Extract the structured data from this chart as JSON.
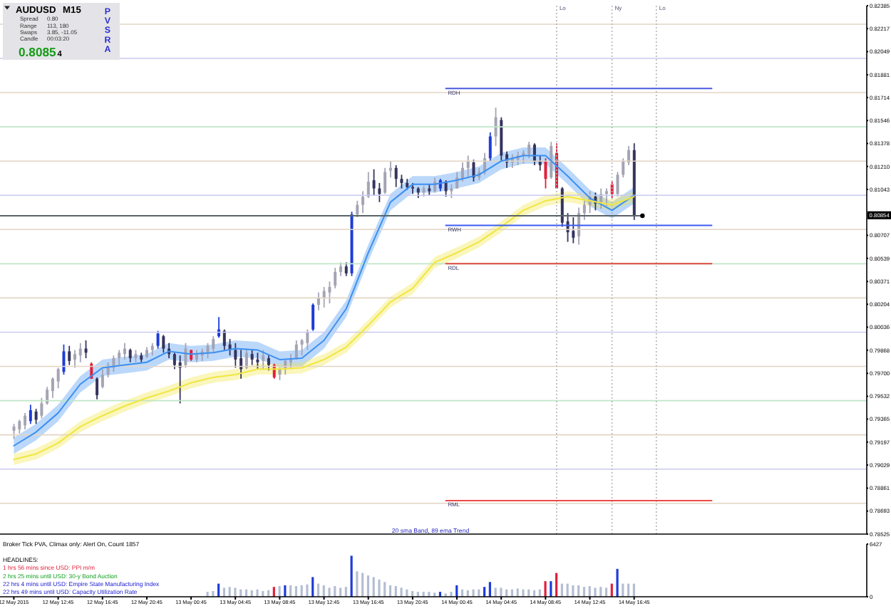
{
  "chart_data": [
    {
      "type": "candlestick",
      "title": "AUDUSD M15",
      "x": [
        "2015-05-12T08:45",
        "2015-05-12T09:15",
        "2015-05-12T09:45",
        "2015-05-12T10:15",
        "2015-05-12T10:45",
        "2015-05-12T11:15",
        "2015-05-12T11:45",
        "2015-05-12T12:15",
        "2015-05-12T12:45",
        "2015-05-12T13:15",
        "2015-05-12T13:45",
        "2015-05-12T14:15",
        "2015-05-12T14:45",
        "2015-05-12T15:15",
        "2015-05-12T15:45",
        "2015-05-12T16:15",
        "2015-05-12T16:45",
        "2015-05-12T17:15",
        "2015-05-12T17:45",
        "2015-05-12T18:15",
        "2015-05-12T18:45",
        "2015-05-12T19:15",
        "2015-05-12T19:45",
        "2015-05-12T20:15",
        "2015-05-12T20:45",
        "2015-05-12T21:15",
        "2015-05-12T21:45",
        "2015-05-12T22:15",
        "2015-05-12T22:45",
        "2015-05-12T23:15",
        "2015-05-12T23:45",
        "2015-05-13T00:15",
        "2015-05-13T00:45",
        "2015-05-13T01:15",
        "2015-05-13T01:45",
        "2015-05-13T02:15",
        "2015-05-13T02:45",
        "2015-05-13T03:15",
        "2015-05-13T03:45",
        "2015-05-13T04:15",
        "2015-05-13T04:45",
        "2015-05-13T05:15",
        "2015-05-13T05:45",
        "2015-05-13T06:15",
        "2015-05-13T06:45",
        "2015-05-13T07:15",
        "2015-05-13T07:45",
        "2015-05-13T08:15",
        "2015-05-13T08:45",
        "2015-05-13T09:15",
        "2015-05-13T09:45",
        "2015-05-13T10:15",
        "2015-05-13T10:45",
        "2015-05-13T11:15",
        "2015-05-13T11:45",
        "2015-05-13T12:15",
        "2015-05-13T12:45",
        "2015-05-13T13:15",
        "2015-05-13T13:45",
        "2015-05-13T14:15",
        "2015-05-13T14:45",
        "2015-05-13T15:15",
        "2015-05-13T15:45",
        "2015-05-13T16:15",
        "2015-05-13T16:45",
        "2015-05-13T17:15",
        "2015-05-13T17:45",
        "2015-05-13T18:15",
        "2015-05-13T18:45",
        "2015-05-13T19:15",
        "2015-05-13T19:45",
        "2015-05-13T20:15",
        "2015-05-13T20:45",
        "2015-05-13T21:15",
        "2015-05-13T21:45",
        "2015-05-13T22:15",
        "2015-05-13T22:45",
        "2015-05-13T23:15",
        "2015-05-13T23:45",
        "2015-05-14T00:15",
        "2015-05-14T00:45",
        "2015-05-14T01:15",
        "2015-05-14T01:45",
        "2015-05-14T02:15",
        "2015-05-14T02:45",
        "2015-05-14T03:15",
        "2015-05-14T03:45",
        "2015-05-14T04:15",
        "2015-05-14T04:45",
        "2015-05-14T05:15",
        "2015-05-14T05:45",
        "2015-05-14T06:15",
        "2015-05-14T06:45",
        "2015-05-14T07:15",
        "2015-05-14T07:45",
        "2015-05-14T08:15",
        "2015-05-14T08:45",
        "2015-05-14T09:15",
        "2015-05-14T09:45",
        "2015-05-14T10:15",
        "2015-05-14T10:45",
        "2015-05-14T11:15",
        "2015-05-14T11:45",
        "2015-05-14T12:15",
        "2015-05-14T12:45",
        "2015-05-14T13:15",
        "2015-05-14T13:45",
        "2015-05-14T14:15",
        "2015-05-14T14:45",
        "2015-05-14T15:15",
        "2015-05-14T15:45",
        "2015-05-14T16:15",
        "2015-05-14T16:45"
      ],
      "ohlc": [
        [
          0.7928,
          0.7933,
          0.7922,
          0.7931
        ],
        [
          0.7929,
          0.7936,
          0.7926,
          0.7935
        ],
        [
          0.7932,
          0.7941,
          0.7929,
          0.7939
        ],
        [
          0.7935,
          0.7947,
          0.7933,
          0.7943
        ],
        [
          0.7942,
          0.7944,
          0.7933,
          0.7936
        ],
        [
          0.7939,
          0.7952,
          0.7937,
          0.7948
        ],
        [
          0.7948,
          0.796,
          0.7947,
          0.7958
        ],
        [
          0.7957,
          0.7967,
          0.7952,
          0.7966
        ],
        [
          0.7964,
          0.7974,
          0.7959,
          0.7973
        ],
        [
          0.7971,
          0.7991,
          0.7969,
          0.7986
        ],
        [
          0.7986,
          0.799,
          0.7976,
          0.7979
        ],
        [
          0.798,
          0.7987,
          0.7974,
          0.7984
        ],
        [
          0.7983,
          0.7992,
          0.7978,
          0.7988
        ],
        [
          0.7988,
          0.7994,
          0.7981,
          0.7985
        ],
        [
          0.7977,
          0.7978,
          0.7966,
          0.7966
        ],
        [
          0.7966,
          0.7967,
          0.7951,
          0.7954
        ],
        [
          0.796,
          0.7973,
          0.7959,
          0.7969
        ],
        [
          0.7969,
          0.7978,
          0.7967,
          0.7976
        ],
        [
          0.7974,
          0.7983,
          0.7971,
          0.7981
        ],
        [
          0.7981,
          0.7987,
          0.7976,
          0.7985
        ],
        [
          0.7984,
          0.7992,
          0.798,
          0.7988
        ],
        [
          0.7987,
          0.7988,
          0.7978,
          0.7981
        ],
        [
          0.7981,
          0.7987,
          0.7978,
          0.7984
        ],
        [
          0.7983,
          0.7985,
          0.7978,
          0.798
        ],
        [
          0.7982,
          0.7989,
          0.7981,
          0.7987
        ],
        [
          0.7987,
          0.7992,
          0.7983,
          0.799
        ],
        [
          0.799,
          0.8001,
          0.7988,
          0.7999
        ],
        [
          0.7997,
          0.7998,
          0.7985,
          0.7988
        ],
        [
          0.7988,
          0.7992,
          0.7981,
          0.7984
        ],
        [
          0.7984,
          0.7985,
          0.7973,
          0.7976
        ],
        [
          0.7978,
          0.7983,
          0.7948,
          0.7974
        ],
        [
          0.7976,
          0.7992,
          0.7974,
          0.7988
        ],
        [
          0.7987,
          0.7987,
          0.7979,
          0.798
        ],
        [
          0.798,
          0.7987,
          0.7978,
          0.7984
        ],
        [
          0.7983,
          0.7988,
          0.7979,
          0.7986
        ],
        [
          0.7985,
          0.7992,
          0.7981,
          0.799
        ],
        [
          0.7988,
          0.7997,
          0.7985,
          0.7995
        ],
        [
          0.7997,
          0.8011,
          0.7996,
          0.8002
        ],
        [
          0.8001,
          0.8002,
          0.7987,
          0.799
        ],
        [
          0.7991,
          0.7995,
          0.7983,
          0.7987
        ],
        [
          0.7987,
          0.7992,
          0.7974,
          0.798
        ],
        [
          0.7981,
          0.7987,
          0.7966,
          0.7973
        ],
        [
          0.7974,
          0.7988,
          0.7973,
          0.7985
        ],
        [
          0.7984,
          0.7987,
          0.7976,
          0.798
        ],
        [
          0.798,
          0.7985,
          0.7973,
          0.7978
        ],
        [
          0.7979,
          0.7987,
          0.7973,
          0.7983
        ],
        [
          0.7981,
          0.7983,
          0.7972,
          0.7976
        ],
        [
          0.7976,
          0.7977,
          0.7966,
          0.7967
        ],
        [
          0.7969,
          0.7974,
          0.7965,
          0.7973
        ],
        [
          0.7973,
          0.798,
          0.7969,
          0.7979
        ],
        [
          0.7978,
          0.7984,
          0.7973,
          0.7981
        ],
        [
          0.7981,
          0.7994,
          0.798,
          0.7991
        ],
        [
          0.7991,
          0.7995,
          0.7983,
          0.7994
        ],
        [
          0.7992,
          0.8002,
          0.7987,
          0.8
        ],
        [
          0.8002,
          0.8021,
          0.8001,
          0.802
        ],
        [
          0.802,
          0.8029,
          0.8016,
          0.8025
        ],
        [
          0.8025,
          0.8033,
          0.8018,
          0.803
        ],
        [
          0.8029,
          0.8037,
          0.8021,
          0.8033
        ],
        [
          0.8034,
          0.8047,
          0.8032,
          0.8044
        ],
        [
          0.8044,
          0.8051,
          0.8041,
          0.8048
        ],
        [
          0.8048,
          0.8051,
          0.8041,
          0.8043
        ],
        [
          0.8043,
          0.8088,
          0.8041,
          0.8086
        ],
        [
          0.8086,
          0.8096,
          0.8084,
          0.8093
        ],
        [
          0.8093,
          0.8103,
          0.8087,
          0.8099
        ],
        [
          0.8099,
          0.8117,
          0.8098,
          0.811
        ],
        [
          0.8111,
          0.8119,
          0.81,
          0.8105
        ],
        [
          0.8105,
          0.8109,
          0.8095,
          0.8101
        ],
        [
          0.8102,
          0.812,
          0.8101,
          0.8117
        ],
        [
          0.8118,
          0.8125,
          0.8113,
          0.812
        ],
        [
          0.812,
          0.8122,
          0.8106,
          0.8112
        ],
        [
          0.8112,
          0.8115,
          0.8105,
          0.8109
        ],
        [
          0.8109,
          0.8112,
          0.8104,
          0.8106
        ],
        [
          0.8106,
          0.8109,
          0.8101,
          0.8105
        ],
        [
          0.8105,
          0.8106,
          0.8098,
          0.8102
        ],
        [
          0.8102,
          0.8107,
          0.8099,
          0.8105
        ],
        [
          0.8105,
          0.8108,
          0.81,
          0.8103
        ],
        [
          0.8103,
          0.8113,
          0.8102,
          0.811
        ],
        [
          0.8105,
          0.8112,
          0.8103,
          0.8111
        ],
        [
          0.811,
          0.8111,
          0.8099,
          0.8103
        ],
        [
          0.8103,
          0.8108,
          0.8098,
          0.8105
        ],
        [
          0.8105,
          0.8117,
          0.8105,
          0.8113
        ],
        [
          0.8112,
          0.8124,
          0.811,
          0.812
        ],
        [
          0.812,
          0.8129,
          0.8113,
          0.8125
        ],
        [
          0.8124,
          0.8126,
          0.811,
          0.8113
        ],
        [
          0.8113,
          0.812,
          0.8111,
          0.8117
        ],
        [
          0.8117,
          0.8131,
          0.8115,
          0.8127
        ],
        [
          0.8127,
          0.8146,
          0.8125,
          0.8143
        ],
        [
          0.8143,
          0.8164,
          0.8136,
          0.8157
        ],
        [
          0.8155,
          0.8157,
          0.8125,
          0.8129
        ],
        [
          0.813,
          0.8132,
          0.812,
          0.8124
        ],
        [
          0.8124,
          0.813,
          0.812,
          0.8127
        ],
        [
          0.8126,
          0.8132,
          0.8122,
          0.8129
        ],
        [
          0.8129,
          0.8133,
          0.8123,
          0.8131
        ],
        [
          0.813,
          0.8139,
          0.8127,
          0.8137
        ],
        [
          0.8137,
          0.8138,
          0.8122,
          0.8125
        ],
        [
          0.8125,
          0.8129,
          0.8118,
          0.8122
        ],
        [
          0.8125,
          0.8127,
          0.8105,
          0.8112
        ],
        [
          0.8113,
          0.8139,
          0.8112,
          0.8136
        ],
        [
          0.8131,
          0.8138,
          0.8105,
          0.8105
        ],
        [
          0.8105,
          0.8106,
          0.8077,
          0.808
        ],
        [
          0.8081,
          0.8087,
          0.8066,
          0.8073
        ],
        [
          0.8074,
          0.8084,
          0.8065,
          0.8069
        ],
        [
          0.807,
          0.8091,
          0.8064,
          0.8087
        ],
        [
          0.8087,
          0.8096,
          0.8082,
          0.8093
        ],
        [
          0.8093,
          0.8103,
          0.8087,
          0.8099
        ],
        [
          0.8099,
          0.8102,
          0.8089,
          0.8094
        ],
        [
          0.8095,
          0.8105,
          0.809,
          0.8101
        ],
        [
          0.8101,
          0.8105,
          0.8092,
          0.8103
        ],
        [
          0.8108,
          0.811,
          0.8098,
          0.8101
        ],
        [
          0.8101,
          0.8117,
          0.8099,
          0.8115
        ],
        [
          0.8115,
          0.8127,
          0.8113,
          0.8125
        ],
        [
          0.8124,
          0.8136,
          0.8122,
          0.8133
        ],
        [
          0.8133,
          0.8138,
          0.8082,
          0.8085
        ]
      ],
      "colors": [
        "#a4a4b4",
        "#a4a4b4",
        "#a4a4b4",
        "#1e3cd8",
        "#34345e",
        "#a4a4b4",
        "#a4a4b4",
        "#a4a4b4",
        "#a4a4b4",
        "#1e3cd8",
        "#34345e",
        "#a4a4b4",
        "#a4a4b4",
        "#34345e",
        "#e0203c",
        "#34345e",
        "#a4a4b4",
        "#a4a4b4",
        "#a4a4b4",
        "#a4a4b4",
        "#a4a4b4",
        "#34345e",
        "#a4a4b4",
        "#34345e",
        "#a4a4b4",
        "#a4a4b4",
        "#1e3cd8",
        "#34345e",
        "#34345e",
        "#34345e",
        "#34345e",
        "#a4a4b4",
        "#e0203c",
        "#a4a4b4",
        "#a4a4b4",
        "#a4a4b4",
        "#a4a4b4",
        "#1e3cd8",
        "#34345e",
        "#34345e",
        "#34345e",
        "#34345e",
        "#a4a4b4",
        "#34345e",
        "#34345e",
        "#a4a4b4",
        "#34345e",
        "#e0203c",
        "#a4a4b4",
        "#a4a4b4",
        "#a4a4b4",
        "#a4a4b4",
        "#a4a4b4",
        "#a4a4b4",
        "#1e3cd8",
        "#a4a4b4",
        "#a4a4b4",
        "#a4a4b4",
        "#a4a4b4",
        "#a4a4b4",
        "#34345e",
        "#1e3cd8",
        "#a4a4b4",
        "#a4a4b4",
        "#a4a4b4",
        "#34345e",
        "#34345e",
        "#a4a4b4",
        "#a4a4b4",
        "#34345e",
        "#34345e",
        "#34345e",
        "#34345e",
        "#34345e",
        "#a4a4b4",
        "#34345e",
        "#a4a4b4",
        "#1e3cd8",
        "#34345e",
        "#a4a4b4",
        "#a4a4b4",
        "#a4a4b4",
        "#a4a4b4",
        "#34345e",
        "#a4a4b4",
        "#a4a4b4",
        "#1e3cd8",
        "#a4a4b4",
        "#34345e",
        "#34345e",
        "#a4a4b4",
        "#a4a4b4",
        "#a4a4b4",
        "#a4a4b4",
        "#34345e",
        "#34345e",
        "#e0203c",
        "#a4a4b4",
        "#e0203c",
        "#34345e",
        "#34345e",
        "#34345e",
        "#a4a4b4",
        "#a4a4b4",
        "#a4a4b4",
        "#34345e",
        "#a4a4b4",
        "#a4a4b4",
        "#e0203c",
        "#a4a4b4",
        "#a4a4b4",
        "#a4a4b4",
        "#34345e"
      ],
      "series": [
        {
          "type": "line",
          "color": "#3c8ff0",
          "x": [
            "2015-05-12T08:45",
            "2015-05-12T10:45",
            "2015-05-12T12:45",
            "2015-05-12T14:45",
            "2015-05-12T16:45",
            "2015-05-12T18:45",
            "2015-05-12T20:45",
            "2015-05-12T22:45",
            "2015-05-13T00:45",
            "2015-05-13T02:45",
            "2015-05-13T04:45",
            "2015-05-13T06:45",
            "2015-05-13T08:45",
            "2015-05-13T10:45",
            "2015-05-13T12:45",
            "2015-05-13T14:45",
            "2015-05-13T16:45",
            "2015-05-13T18:45",
            "2015-05-13T20:45",
            "2015-05-13T22:45",
            "2015-05-14T00:45",
            "2015-05-14T02:45",
            "2015-05-14T04:45",
            "2015-05-14T06:45",
            "2015-05-14T08:45",
            "2015-05-14T10:45",
            "2015-05-14T12:45",
            "2015-05-14T14:45",
            "2015-05-14T16:45"
          ],
          "values": [
            0.7917,
            0.7927,
            0.7941,
            0.7962,
            0.7974,
            0.7976,
            0.7978,
            0.7986,
            0.7984,
            0.7985,
            0.7988,
            0.7987,
            0.798,
            0.7981,
            0.7994,
            0.8017,
            0.8058,
            0.8095,
            0.8108,
            0.8108,
            0.8111,
            0.8115,
            0.8125,
            0.8129,
            0.8129,
            0.8114,
            0.8098,
            0.8089,
            0.81
          ],
          "lower": [
            0.7911,
            0.7921,
            0.7935,
            0.7956,
            0.7968,
            0.797,
            0.7972,
            0.798,
            0.7978,
            0.7979,
            0.7982,
            0.7981,
            0.7974,
            0.7975,
            0.7988,
            0.8011,
            0.8052,
            0.8089,
            0.8102,
            0.8102,
            0.8105,
            0.8109,
            0.8119,
            0.8123,
            0.8123,
            0.8108,
            0.8092,
            0.8083,
            0.8094
          ],
          "upper": [
            0.7923,
            0.7933,
            0.7947,
            0.7968,
            0.798,
            0.7982,
            0.7984,
            0.7992,
            0.799,
            0.7991,
            0.7994,
            0.7993,
            0.7986,
            0.7987,
            0.8,
            0.8023,
            0.8064,
            0.8101,
            0.8114,
            0.8114,
            0.8117,
            0.8121,
            0.8131,
            0.8135,
            0.8135,
            0.812,
            0.8104,
            0.8095,
            0.8106
          ]
        },
        {
          "type": "line",
          "color": "#f0e640",
          "x": [
            "2015-05-12T08:45",
            "2015-05-12T10:45",
            "2015-05-12T12:45",
            "2015-05-12T14:45",
            "2015-05-12T16:45",
            "2015-05-12T18:45",
            "2015-05-12T20:45",
            "2015-05-12T22:45",
            "2015-05-13T00:45",
            "2015-05-13T02:45",
            "2015-05-13T04:45",
            "2015-05-13T06:45",
            "2015-05-13T08:45",
            "2015-05-13T10:45",
            "2015-05-13T12:45",
            "2015-05-13T14:45",
            "2015-05-13T16:45",
            "2015-05-13T18:45",
            "2015-05-13T20:45",
            "2015-05-13T22:45",
            "2015-05-14T00:45",
            "2015-05-14T02:45",
            "2015-05-14T04:45",
            "2015-05-14T06:45",
            "2015-05-14T08:45",
            "2015-05-14T10:45",
            "2015-05-14T12:45",
            "2015-05-14T14:45",
            "2015-05-14T16:45"
          ],
          "values": [
            0.7907,
            0.7911,
            0.7919,
            0.7931,
            0.7939,
            0.7946,
            0.7952,
            0.7957,
            0.7963,
            0.7967,
            0.7969,
            0.7973,
            0.7973,
            0.7974,
            0.798,
            0.7989,
            0.8005,
            0.8022,
            0.8032,
            0.8051,
            0.8058,
            0.8066,
            0.8077,
            0.8089,
            0.8096,
            0.8099,
            0.8096,
            0.8093,
            0.8099
          ],
          "lower": [
            0.7903,
            0.7907,
            0.7915,
            0.7927,
            0.7935,
            0.7942,
            0.7948,
            0.7953,
            0.7959,
            0.7963,
            0.7965,
            0.7969,
            0.7969,
            0.797,
            0.7976,
            0.7985,
            0.8001,
            0.8018,
            0.8028,
            0.8047,
            0.8054,
            0.8062,
            0.8073,
            0.8085,
            0.8092,
            0.8095,
            0.8092,
            0.8089,
            0.8095
          ],
          "upper": [
            0.7911,
            0.7915,
            0.7923,
            0.7935,
            0.7943,
            0.795,
            0.7956,
            0.7961,
            0.7967,
            0.7971,
            0.7973,
            0.7977,
            0.7977,
            0.7978,
            0.7984,
            0.7993,
            0.8009,
            0.8026,
            0.8036,
            0.8055,
            0.8062,
            0.807,
            0.8081,
            0.8093,
            0.81,
            0.8103,
            0.81,
            0.8097,
            0.8103
          ]
        },
        {
          "type": "line",
          "name": "RDH",
          "color": "#4a5ae0",
          "x": [
            "2015-05-13T23:45",
            "2015-05-14T23:45"
          ],
          "values": [
            0.8178,
            0.8178
          ]
        },
        {
          "type": "line",
          "name": "RWH",
          "color": "#3c5cf0",
          "x": [
            "2015-05-13T23:45",
            "2015-05-14T23:45"
          ],
          "values": [
            0.8078,
            0.8078
          ]
        },
        {
          "type": "line",
          "name": "RDL",
          "color": "#e04a40",
          "x": [
            "2015-05-13T23:45",
            "2015-05-14T23:45"
          ],
          "values": [
            0.805,
            0.805
          ]
        },
        {
          "type": "line",
          "name": "RML",
          "color": "#f04848",
          "x": [
            "2015-05-13T23:45",
            "2015-05-14T23:45"
          ],
          "values": [
            0.7877,
            0.7877
          ]
        },
        {
          "type": "line",
          "color": "#5a6468",
          "x": [
            "2015-05-12T07:30",
            "2015-05-14T17:30"
          ],
          "values": [
            0.8085,
            0.8085
          ]
        },
        {
          "type": "scatter",
          "color": "#000000",
          "x": [
            "2015-05-14T17:30"
          ],
          "values": [
            0.8085
          ]
        }
      ],
      "xlim": [
        "2015-05-12T07:30",
        "2015-05-15T13:45"
      ],
      "ylim": [
        0.78525,
        0.82385
      ],
      "yticks": [
        0.82385,
        0.82217,
        0.82049,
        0.81881,
        0.81714,
        0.81546,
        0.81378,
        {
          "value": 0.8121,
          "label": "0.81210"
        },
        0.81043,
        0.80707,
        0.80539,
        0.80371,
        0.80204,
        0.80036,
        0.79868,
        {
          "value": 0.797,
          "label": "0.79700"
        },
        0.79532,
        0.79365,
        0.79197,
        0.79029,
        0.78861,
        0.78693,
        0.78525
      ],
      "tick_labels": "y",
      "ref_lines": [
        {
          "axis": "y",
          "value": 0.8225,
          "color": "#e2d5c4"
        },
        {
          "axis": "y",
          "value": 0.82,
          "color": "#cacaf2"
        },
        {
          "axis": "y",
          "value": 0.8175,
          "color": "#e2d5c4"
        },
        {
          "axis": "y",
          "value": 0.815,
          "color": "#bfe6c8"
        },
        {
          "axis": "y",
          "value": 0.8125,
          "color": "#e2d5c4"
        },
        {
          "axis": "y",
          "value": 0.81,
          "color": "#cacaf2"
        },
        {
          "axis": "y",
          "value": 0.8075,
          "color": "#e2d5c4"
        },
        {
          "axis": "y",
          "value": 0.805,
          "color": "#bfe6c8"
        },
        {
          "axis": "y",
          "value": 0.8025,
          "color": "#e2d5c4"
        },
        {
          "axis": "y",
          "value": 0.8,
          "color": "#cacaf2"
        },
        {
          "axis": "y",
          "value": 0.7975,
          "color": "#e2d5c4"
        },
        {
          "axis": "y",
          "value": 0.795,
          "color": "#bfe6c8"
        },
        {
          "axis": "y",
          "value": 0.7925,
          "color": "#e2d5c4"
        },
        {
          "axis": "y",
          "value": 0.79,
          "color": "#cacaf2"
        },
        {
          "axis": "y",
          "value": 0.7875,
          "color": "#e2d5c4"
        },
        {
          "axis": "x",
          "value": "2015-05-14T09:45",
          "label": "Lo",
          "color": "#b4b4b4",
          "line_style": "dotted"
        },
        {
          "axis": "x",
          "value": "2015-05-14T14:45",
          "label": "Ny",
          "color": "#b4b4b4",
          "line_style": "dotted"
        },
        {
          "axis": "x",
          "value": "2015-05-14T18:45",
          "label": "Lo",
          "color": "#b4b4b4",
          "line_style": "dotted"
        }
      ],
      "annotations": [
        "Spread 0.80",
        "Range 113, 180",
        "Swaps 3.85, -11.05",
        "Candle 00:03:20",
        "0.80854",
        "PVSRA",
        "20 sma Band, 89 ema Trend",
        {
          "text": "0.80854",
          "y": 0.80854
        }
      ]
    },
    {
      "type": "bar",
      "x": [
        "2015-05-13T02:15",
        "2015-05-13T02:45",
        "2015-05-13T03:15",
        "2015-05-13T03:45",
        "2015-05-13T04:15",
        "2015-05-13T04:45",
        "2015-05-13T05:15",
        "2015-05-13T05:45",
        "2015-05-13T06:15",
        "2015-05-13T06:45",
        "2015-05-13T07:15",
        "2015-05-13T07:45",
        "2015-05-13T08:15",
        "2015-05-13T08:45",
        "2015-05-13T09:15",
        "2015-05-13T09:45",
        "2015-05-13T10:15",
        "2015-05-13T10:45",
        "2015-05-13T11:15",
        "2015-05-13T11:45",
        "2015-05-13T12:15",
        "2015-05-13T12:45",
        "2015-05-13T13:15",
        "2015-05-13T13:45",
        "2015-05-13T14:15",
        "2015-05-13T14:45",
        "2015-05-13T15:15",
        "2015-05-13T15:45",
        "2015-05-13T16:15",
        "2015-05-13T16:45",
        "2015-05-13T17:15",
        "2015-05-13T17:45",
        "2015-05-13T18:15",
        "2015-05-13T18:45",
        "2015-05-13T19:15",
        "2015-05-13T19:45",
        "2015-05-13T20:15",
        "2015-05-13T20:45",
        "2015-05-13T21:15",
        "2015-05-13T21:45",
        "2015-05-13T22:15",
        "2015-05-13T22:45",
        "2015-05-13T23:15",
        "2015-05-13T23:45",
        "2015-05-14T00:15",
        "2015-05-14T00:45",
        "2015-05-14T01:15",
        "2015-05-14T01:45",
        "2015-05-14T02:15",
        "2015-05-14T02:45",
        "2015-05-14T03:15",
        "2015-05-14T03:45",
        "2015-05-14T04:15",
        "2015-05-14T04:45",
        "2015-05-14T05:15",
        "2015-05-14T05:45",
        "2015-05-14T06:15",
        "2015-05-14T06:45",
        "2015-05-14T07:15",
        "2015-05-14T07:45",
        "2015-05-14T08:15",
        "2015-05-14T08:45",
        "2015-05-14T09:15",
        "2015-05-14T09:45",
        "2015-05-14T10:15",
        "2015-05-14T10:45",
        "2015-05-14T11:15",
        "2015-05-14T11:45",
        "2015-05-14T12:15",
        "2015-05-14T12:45",
        "2015-05-14T13:15",
        "2015-05-14T13:45",
        "2015-05-14T14:15",
        "2015-05-14T14:45",
        "2015-05-14T15:15",
        "2015-05-14T15:45",
        "2015-05-14T16:15",
        "2015-05-14T16:45"
      ],
      "values": [
        600,
        700,
        1600,
        1100,
        1200,
        1100,
        900,
        900,
        800,
        900,
        700,
        800,
        1200,
        1300,
        1400,
        1400,
        1300,
        1400,
        1500,
        2400,
        1600,
        1400,
        1100,
        1300,
        1100,
        1200,
        5000,
        3100,
        2900,
        2600,
        2400,
        2100,
        1800,
        1400,
        1300,
        1100,
        900,
        700,
        600,
        600,
        600,
        500,
        600,
        400,
        600,
        1400,
        900,
        800,
        900,
        900,
        1200,
        1800,
        1100,
        1100,
        900,
        900,
        1000,
        900,
        900,
        800,
        900,
        1900,
        1900,
        2900,
        1600,
        1600,
        1400,
        1400,
        1200,
        1300,
        1100,
        1200,
        1100,
        1600,
        3400,
        1600,
        1600,
        1600
      ],
      "colors": [
        "#b4bed2",
        "#b4bed2",
        "#1e3cd8",
        "#b4bed2",
        "#b4bed2",
        "#b4bed2",
        "#b4bed2",
        "#b4bed2",
        "#b4bed2",
        "#b4bed2",
        "#b4bed2",
        "#b4bed2",
        "#e0203c",
        "#b4bed2",
        "#1e3cd8",
        "#b4bed2",
        "#b4bed2",
        "#b4bed2",
        "#b4bed2",
        "#1e3cd8",
        "#b4bed2",
        "#b4bed2",
        "#b4bed2",
        "#b4bed2",
        "#b4bed2",
        "#b4bed2",
        "#1e3cd8",
        "#b4bed2",
        "#b4bed2",
        "#b4bed2",
        "#b4bed2",
        "#b4bed2",
        "#b4bed2",
        "#b4bed2",
        "#b4bed2",
        "#b4bed2",
        "#b4bed2",
        "#b4bed2",
        "#b4bed2",
        "#b4bed2",
        "#b4bed2",
        "#b4bed2",
        "#1e3cd8",
        "#b4bed2",
        "#b4bed2",
        "#1e3cd8",
        "#b4bed2",
        "#b4bed2",
        "#b4bed2",
        "#b4bed2",
        "#1e3cd8",
        "#1e3cd8",
        "#b4bed2",
        "#b4bed2",
        "#b4bed2",
        "#b4bed2",
        "#b4bed2",
        "#b4bed2",
        "#b4bed2",
        "#b4bed2",
        "#b4bed2",
        "#e0203c",
        "#1e3cd8",
        "#e0203c",
        "#b4bed2",
        "#b4bed2",
        "#b4bed2",
        "#b4bed2",
        "#b4bed2",
        "#b4bed2",
        "#b4bed2",
        "#b4bed2",
        "#b4bed2",
        "#e0203c",
        "#1e3cd8",
        "#b4bed2",
        "#b4bed2",
        "#b4bed2"
      ],
      "xlim": [
        "2015-05-12T07:30",
        "2015-05-15T13:45"
      ],
      "xticks": [
        {
          "value": "2015-05-12T08:45",
          "label": "12 May 2015"
        },
        {
          "value": "2015-05-12T12:45",
          "label": "12 May 12:45"
        },
        {
          "value": "2015-05-12T16:45",
          "label": "12 May 16:45"
        },
        {
          "value": "2015-05-12T20:45",
          "label": "12 May 20:45"
        },
        {
          "value": "2015-05-13T00:45",
          "label": "13 May 00:45"
        },
        {
          "value": "2015-05-13T04:45",
          "label": "13 May 04:45"
        },
        {
          "value": "2015-05-13T08:45",
          "label": "13 May 08:45"
        },
        {
          "value": "2015-05-13T12:45",
          "label": "13 May 12:45"
        },
        {
          "value": "2015-05-13T16:45",
          "label": "13 May 16:45"
        },
        {
          "value": "2015-05-13T20:45",
          "label": "13 May 20:45"
        },
        {
          "value": "2015-05-14T00:45",
          "label": "14 May 00:45"
        },
        {
          "value": "2015-05-14T04:45",
          "label": "14 May 04:45"
        },
        {
          "value": "2015-05-14T08:45",
          "label": "14 May 08:45"
        },
        {
          "value": "2015-05-14T12:45",
          "label": "14 May 12:45"
        },
        {
          "value": "2015-05-14T16:45",
          "label": "14 May 16:45"
        }
      ],
      "ylim": [
        0,
        6427
      ],
      "yticks": [
        0,
        6427
      ],
      "annotations": [
        "Broker Tick PVA, Climax only: Alert On, Count 1857",
        "HEADLINES:",
        "1 hrs 56 mins since USD: PPI m/m",
        "2 hrs 25 mins until USD: 30-y Bond Auction",
        "22 hrs 4 mins until USD: Empire State Manufacturing Index",
        "22 hrs 49 mins until USD: Capacity Utilization Rate"
      ]
    }
  ]
}
